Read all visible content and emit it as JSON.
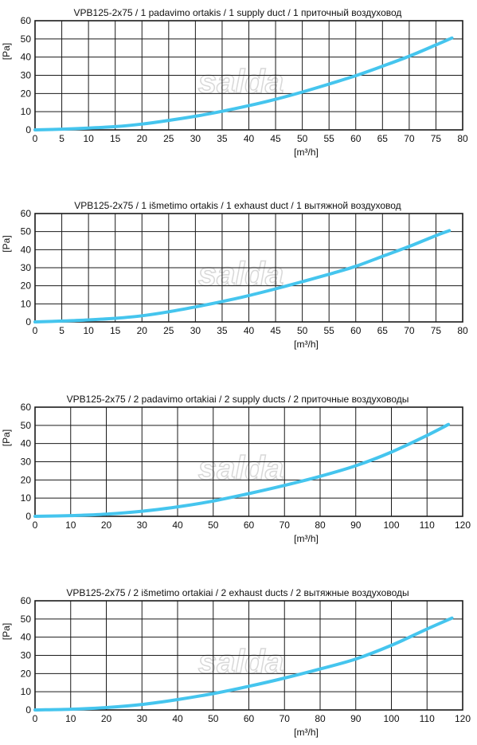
{
  "colors": {
    "curve": "#45c5ee",
    "grid": "#1a1a1a",
    "background": "#ffffff",
    "watermark": "#d8d8d8"
  },
  "watermark": "salda",
  "chart_data": [
    {
      "type": "line",
      "title": "VPB125-2x75 / 1 padavimo ortakis / 1 supply duct / 1 приточный воздуховод",
      "xlabel": "[m³/h]",
      "ylabel": "[Pa]",
      "xlim": [
        0,
        80
      ],
      "ylim": [
        0,
        60
      ],
      "xticks": [
        0,
        5,
        10,
        15,
        20,
        25,
        30,
        35,
        40,
        45,
        50,
        55,
        60,
        65,
        70,
        75,
        80
      ],
      "yticks": [
        0,
        10,
        20,
        30,
        40,
        50,
        60
      ],
      "grid": true,
      "series": [
        {
          "x": [
            0,
            5,
            10,
            15,
            20,
            25,
            30,
            35,
            40,
            45,
            50,
            55,
            60,
            65,
            70,
            75,
            78
          ],
          "y": [
            0,
            0.4,
            1,
            1.8,
            3.2,
            5.2,
            7.5,
            10.2,
            13.3,
            16.8,
            20.8,
            25.2,
            29.8,
            35,
            40.5,
            46.7,
            50.5
          ]
        }
      ]
    },
    {
      "type": "line",
      "title": "VPB125-2x75 / 1 išmetimo ortakis / 1 exhaust duct / 1 вытяжной воздуховод",
      "xlabel": "[m³/h]",
      "ylabel": "[Pa]",
      "xlim": [
        0,
        80
      ],
      "ylim": [
        0,
        60
      ],
      "xticks": [
        0,
        5,
        10,
        15,
        20,
        25,
        30,
        35,
        40,
        45,
        50,
        55,
        60,
        65,
        70,
        75,
        80
      ],
      "yticks": [
        0,
        10,
        20,
        30,
        40,
        50,
        60
      ],
      "grid": true,
      "series": [
        {
          "x": [
            0,
            5,
            10,
            15,
            20,
            25,
            30,
            35,
            40,
            45,
            50,
            55,
            60,
            65,
            70,
            75,
            77.5
          ],
          "y": [
            0,
            0.5,
            1.1,
            2,
            3.4,
            5.6,
            8.3,
            11.3,
            14.6,
            18.3,
            22.3,
            26.4,
            30.8,
            36.3,
            41.8,
            47.8,
            50.5
          ]
        }
      ]
    },
    {
      "type": "line",
      "title": "VPB125-2x75 / 2 padavimo ortakiai / 2 supply ducts / 2 приточные воздуховоды",
      "xlabel": "[m³/h]",
      "ylabel": "[Pa]",
      "xlim": [
        0,
        120
      ],
      "ylim": [
        0,
        60
      ],
      "xticks": [
        0,
        10,
        20,
        30,
        40,
        50,
        60,
        70,
        80,
        90,
        100,
        110,
        120
      ],
      "yticks": [
        0,
        10,
        20,
        30,
        40,
        50,
        60
      ],
      "grid": true,
      "series": [
        {
          "x": [
            0,
            10,
            20,
            30,
            40,
            50,
            60,
            70,
            80,
            90,
            100,
            110,
            116
          ],
          "y": [
            0,
            0.4,
            1.2,
            2.8,
            5.2,
            8.4,
            12.5,
            17,
            22,
            27.8,
            35.3,
            44.5,
            50.5
          ]
        }
      ]
    },
    {
      "type": "line",
      "title": "VPB125-2x75 / 2 išmetimo ortakiai / 2 exhaust ducts / 2 вытяжные воздуховоды",
      "xlabel": "[m³/h]",
      "ylabel": "[Pa]",
      "xlim": [
        0,
        120
      ],
      "ylim": [
        0,
        60
      ],
      "xticks": [
        0,
        10,
        20,
        30,
        40,
        50,
        60,
        70,
        80,
        90,
        100,
        110,
        120
      ],
      "yticks": [
        0,
        10,
        20,
        30,
        40,
        50,
        60
      ],
      "grid": true,
      "series": [
        {
          "x": [
            0,
            10,
            20,
            30,
            40,
            50,
            60,
            70,
            80,
            90,
            100,
            110,
            117
          ],
          "y": [
            0,
            0.4,
            1.3,
            3,
            5.7,
            9,
            13,
            17.5,
            22.5,
            28,
            35.5,
            44.5,
            50.5
          ]
        }
      ]
    }
  ]
}
